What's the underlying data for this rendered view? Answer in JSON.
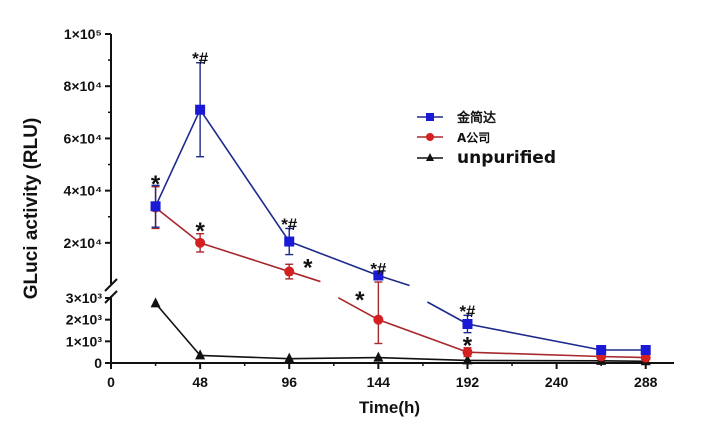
{
  "chart_data": {
    "type": "line",
    "xlabel": "Time(h)",
    "ylabel": "GLuci activity (RLU)",
    "x_ticks": [
      0,
      48,
      96,
      144,
      192,
      240,
      288
    ],
    "x_tick_labels": [
      "0",
      "48",
      "96",
      "144",
      "192",
      "240",
      "288"
    ],
    "xlim": [
      0,
      300
    ],
    "y_axis_broken": true,
    "y_lower_range": [
      0,
      3000
    ],
    "y_upper_range": [
      5000,
      100000
    ],
    "y_ticks_lower": [
      0,
      1000,
      2000,
      3000
    ],
    "y_tick_labels_lower": [
      "0",
      "1×10³",
      "2×10³",
      "3×10³"
    ],
    "y_ticks_upper": [
      20000,
      40000,
      60000,
      80000,
      100000
    ],
    "y_tick_labels_upper": [
      "2×10⁴",
      "4×10⁴",
      "6×10⁴",
      "8×10⁴",
      "1×10⁵"
    ],
    "legend_position": "right",
    "series": [
      {
        "name": "金简达",
        "color": "#1a1ad6",
        "line_color": "#1c2a8c",
        "marker": "square",
        "x": [
          24,
          48,
          96,
          144,
          192,
          264,
          288
        ],
        "y": [
          34000,
          71000,
          20500,
          7500,
          1800,
          600,
          600
        ],
        "err": [
          8000,
          18000,
          5000,
          0,
          400,
          0,
          0
        ],
        "line_gaps": [
          [
            144,
            192
          ]
        ]
      },
      {
        "name": "A公司",
        "color": "#d42020",
        "line_color": "#a8282c",
        "marker": "circle",
        "x": [
          24,
          48,
          96,
          144,
          192,
          264,
          288
        ],
        "y": [
          33500,
          20000,
          9000,
          2000,
          500,
          300,
          250
        ],
        "err": [
          8000,
          3500,
          2800,
          1100,
          200,
          0,
          0
        ],
        "line_gaps": [
          [
            96,
            144
          ]
        ]
      },
      {
        "name": "unpurified",
        "color": "#111111",
        "line_color": "#111111",
        "marker": "triangle",
        "x": [
          24,
          48,
          96,
          144,
          192,
          264,
          288
        ],
        "y": [
          2750,
          350,
          200,
          250,
          120,
          100,
          80
        ],
        "err": [
          0,
          0,
          0,
          0,
          0,
          0,
          0
        ],
        "line_gaps": []
      }
    ],
    "annotations": [
      {
        "x": 24,
        "y": 42500,
        "text": "*"
      },
      {
        "x": 48,
        "y": 90000,
        "text": "*#"
      },
      {
        "x": 48,
        "y": 24500,
        "text": "*"
      },
      {
        "x": 96,
        "y": 26500,
        "text": "*#"
      },
      {
        "x": 106,
        "y": 10500,
        "text": "*"
      },
      {
        "x": 144,
        "y": 9500,
        "text": "*#"
      },
      {
        "x": 134,
        "y": 2900,
        "text": "*"
      },
      {
        "x": 192,
        "y": 2300,
        "text": "*#"
      },
      {
        "x": 192,
        "y": 800,
        "text": "*"
      }
    ]
  }
}
